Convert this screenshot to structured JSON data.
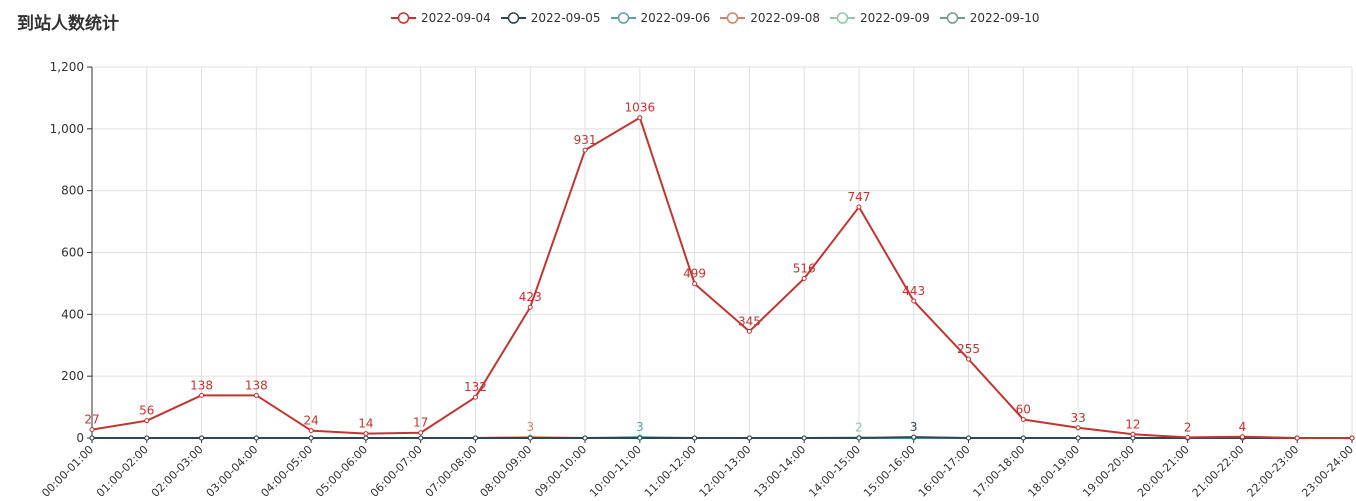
{
  "title": "到站人数统计",
  "colors": [
    "#c23531",
    "#2f4554",
    "#61a0a8",
    "#d48265",
    "#91c7ae",
    "#749f83"
  ],
  "chart_data": {
    "type": "line",
    "title": "到站人数统计",
    "x": [
      "00:00-01:00",
      "01:00-02:00",
      "02:00-03:00",
      "03:00-04:00",
      "04:00-05:00",
      "05:00-06:00",
      "06:00-07:00",
      "07:00-08:00",
      "08:00-09:00",
      "09:00-10:00",
      "10:00-11:00",
      "11:00-12:00",
      "12:00-13:00",
      "13:00-14:00",
      "14:00-15:00",
      "15:00-16:00",
      "16:00-17:00",
      "17:00-18:00",
      "18:00-19:00",
      "19:00-20:00",
      "20:00-21:00",
      "21:00-22:00",
      "22:00-23:00",
      "23:00-24:00"
    ],
    "ylim": [
      0,
      1200
    ],
    "yticks": [
      0,
      200,
      400,
      600,
      800,
      1000,
      1200
    ],
    "ytick_labels": [
      "0",
      "200",
      "400",
      "600",
      "800",
      "1,000",
      "1,200"
    ],
    "grid": true,
    "legend_position": "top-center",
    "series": [
      {
        "name": "2022-09-04",
        "color": "#c23531",
        "values": [
          27,
          56,
          138,
          138,
          24,
          14,
          17,
          132,
          423,
          931,
          1036,
          499,
          345,
          516,
          747,
          443,
          255,
          60,
          33,
          12,
          2,
          4,
          0,
          0
        ]
      },
      {
        "name": "2022-09-05",
        "color": "#2f4554",
        "values": [
          0,
          0,
          0,
          0,
          0,
          0,
          0,
          0,
          0,
          0,
          0,
          0,
          0,
          0,
          0,
          3,
          0,
          0,
          0,
          0,
          0,
          0,
          0,
          0
        ]
      },
      {
        "name": "2022-09-06",
        "color": "#61a0a8",
        "values": [
          0,
          0,
          0,
          0,
          0,
          0,
          0,
          0,
          0,
          0,
          3,
          0,
          0,
          0,
          0,
          0,
          0,
          0,
          0,
          0,
          0,
          0,
          0,
          0
        ]
      },
      {
        "name": "2022-09-08",
        "color": "#d48265",
        "values": [
          0,
          0,
          0,
          0,
          0,
          0,
          0,
          0,
          3,
          0,
          0,
          0,
          0,
          0,
          0,
          0,
          0,
          0,
          0,
          0,
          0,
          0,
          0,
          0
        ]
      },
      {
        "name": "2022-09-09",
        "color": "#91c7ae",
        "values": [
          0,
          0,
          0,
          0,
          0,
          0,
          0,
          0,
          0,
          0,
          0,
          0,
          0,
          0,
          2,
          0,
          0,
          0,
          0,
          0,
          0,
          0,
          0,
          0
        ]
      },
      {
        "name": "2022-09-10",
        "color": "#749f83",
        "values": [
          0,
          0,
          0,
          0,
          0,
          0,
          0,
          0,
          0,
          0,
          0,
          0,
          0,
          0,
          0,
          0,
          0,
          0,
          0,
          0,
          0,
          0,
          0,
          0
        ]
      }
    ],
    "data_labels": [
      {
        "series": 0,
        "indices": [
          0,
          1,
          2,
          3,
          4,
          5,
          6,
          7,
          8,
          9,
          10,
          11,
          12,
          13,
          14,
          15,
          16,
          17,
          18,
          19,
          20,
          21
        ]
      },
      {
        "series": 1,
        "indices": [
          15
        ]
      },
      {
        "series": 2,
        "indices": [
          10
        ]
      },
      {
        "series": 3,
        "indices": [
          8
        ]
      },
      {
        "series": 4,
        "indices": [
          14
        ]
      }
    ]
  }
}
